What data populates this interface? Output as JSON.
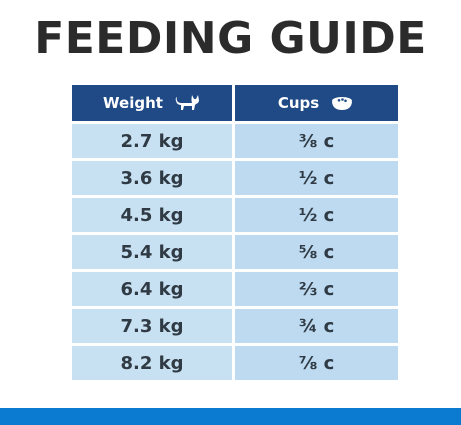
{
  "title": "FEEDING GUIDE",
  "table": {
    "headers": {
      "weight_label": "Weight",
      "weight_icon": "cat-icon",
      "cups_label": "Cups",
      "cups_icon": "food-bowl-icon"
    },
    "rows": [
      {
        "weight": "2.7 kg",
        "cups": "⅜ c"
      },
      {
        "weight": "3.6 kg",
        "cups": "½ c"
      },
      {
        "weight": "4.5 kg",
        "cups": "½ c"
      },
      {
        "weight": "5.4 kg",
        "cups": "⅝ c"
      },
      {
        "weight": "6.4 kg",
        "cups": "⅔ c"
      },
      {
        "weight": "7.3 kg",
        "cups": "¾ c"
      },
      {
        "weight": "8.2 kg",
        "cups": "⅞ c"
      }
    ]
  },
  "colors": {
    "header_bg": "#1f4a86",
    "weight_cell_bg": "#c8e1f2",
    "cups_cell_bg": "#bddaf0",
    "bottom_band": "#0b7bd1",
    "title_text": "#2b2b2b"
  }
}
